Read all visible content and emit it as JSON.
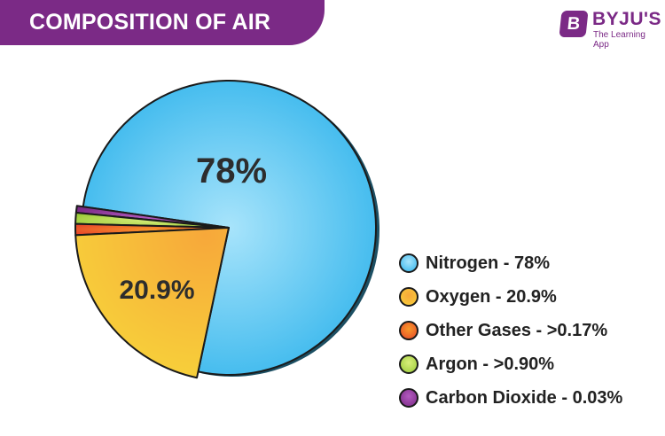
{
  "title": "COMPOSITION OF AIR",
  "brand": {
    "logo_letter": "B",
    "name": "BYJU'S",
    "tagline": "The Learning App"
  },
  "colors": {
    "banner": "#7b2a86",
    "nitrogen": "#33b5ec",
    "oxygen": "#f7cf3a",
    "other_gases": "#e8472a",
    "argon": "#9ccc3a",
    "carbon_dioxide": "#7b2a86"
  },
  "chart_data": {
    "type": "pie",
    "title": "COMPOSITION OF AIR",
    "slices": [
      {
        "name": "Nitrogen",
        "value": 78,
        "slice_label": "78%",
        "legend_label": "Nitrogen - 78%",
        "color": "#33b5ec",
        "highlight": "#a8e4fb"
      },
      {
        "name": "Oxygen",
        "value": 20.9,
        "slice_label": "20.9%",
        "legend_label": "Oxygen - 20.9%",
        "color": "#f7cf3a",
        "highlight": "#f7a83a"
      },
      {
        "name": "Other Gases",
        "value": 0.17,
        "slice_label": "",
        "legend_label": "Other Gases - >0.17%",
        "color": "#e8472a",
        "highlight": "#f79a2a"
      },
      {
        "name": "Argon",
        "value": 0.9,
        "slice_label": "",
        "legend_label": "Argon - >0.90%",
        "color": "#9ccc3a",
        "highlight": "#d8ee7a"
      },
      {
        "name": "Carbon Dioxide",
        "value": 0.03,
        "slice_label": "",
        "legend_label": "Carbon Dioxide - 0.03%",
        "color": "#7b2a86",
        "highlight": "#b35bc0"
      }
    ],
    "legend_position": "right"
  }
}
